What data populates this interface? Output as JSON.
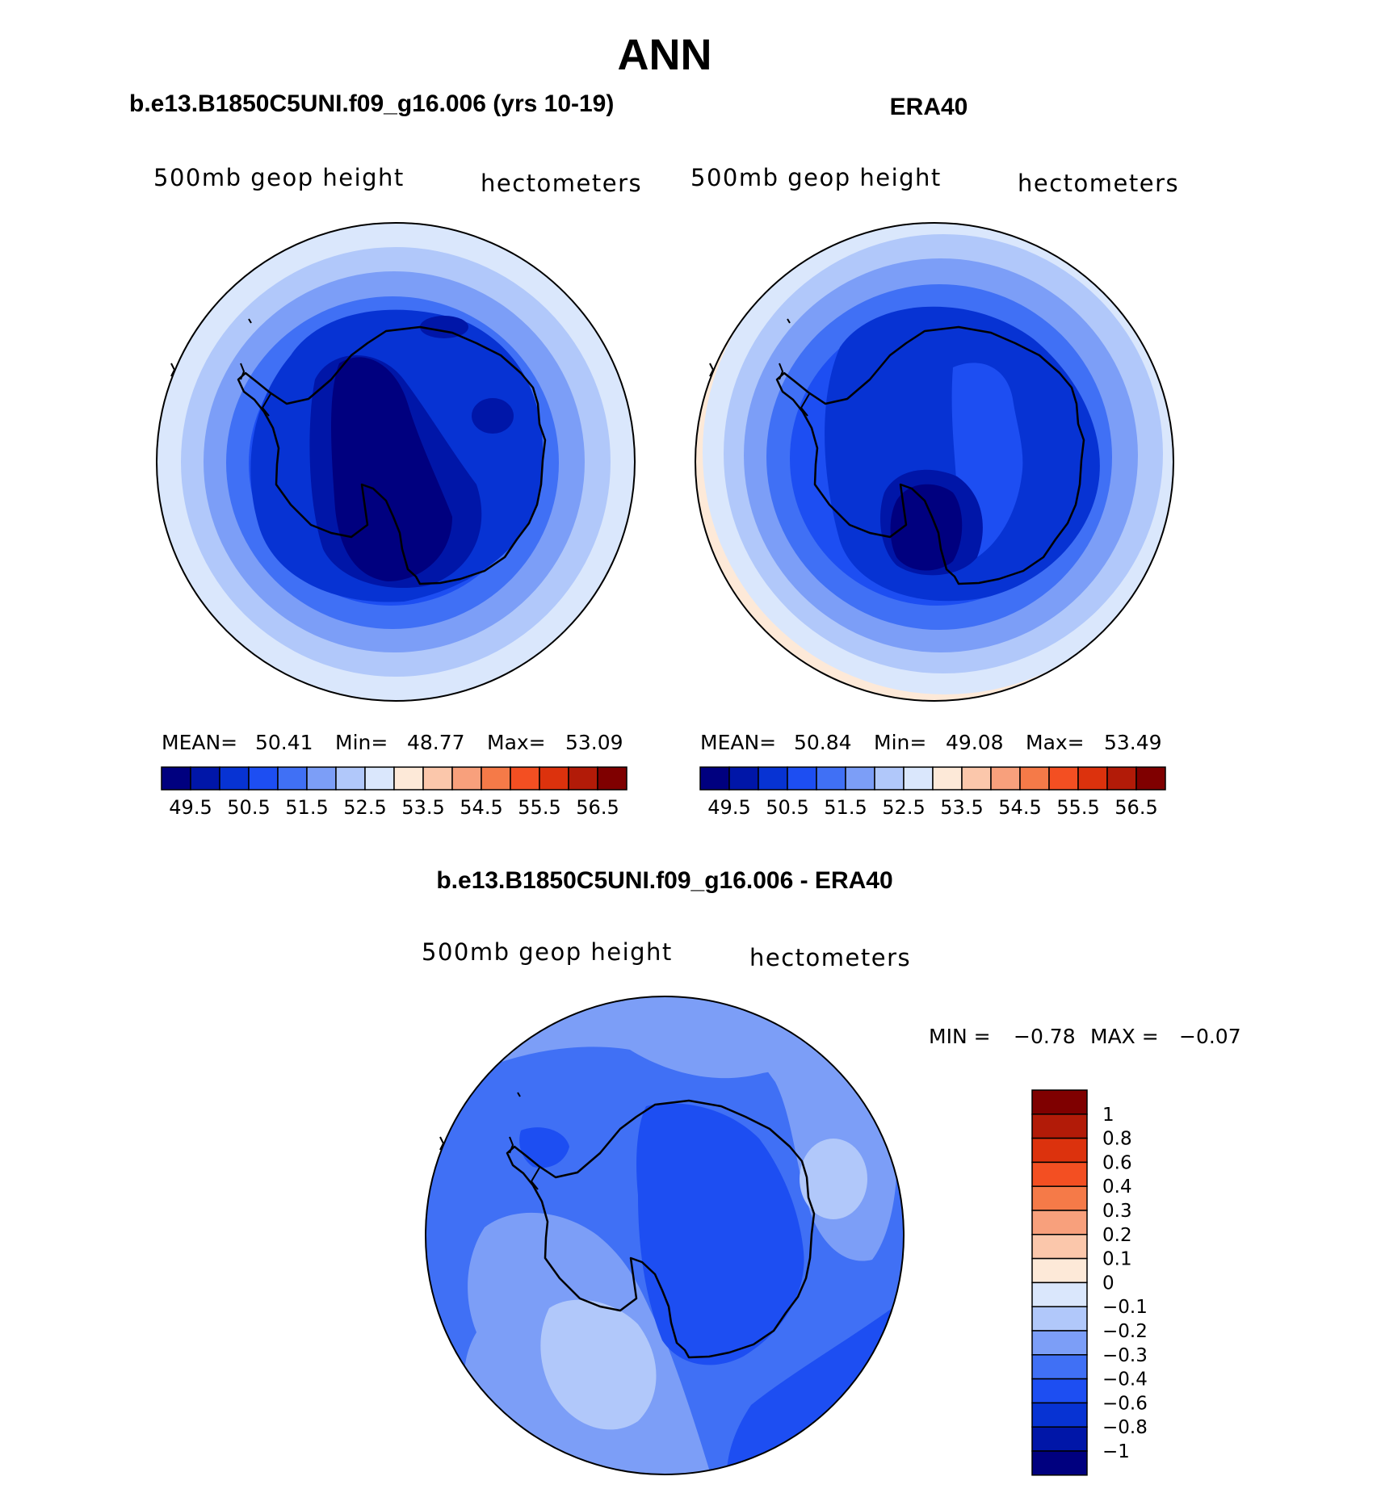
{
  "main_title": "ANN",
  "panels": {
    "model": {
      "title": "b.e13.B1850C5UNI.f09_g16.006 (yrs 10-19)",
      "variable": "500mb geop height",
      "units": "hectometers",
      "stats": {
        "mean_label": "MEAN=",
        "mean": "50.41",
        "min_label": "Min=",
        "min": "48.77",
        "max_label": "Max=",
        "max": "53.09"
      }
    },
    "obs": {
      "title": "ERA40",
      "variable": "500mb geop height",
      "units": "hectometers",
      "stats": {
        "mean_label": "MEAN=",
        "mean": "50.84",
        "min_label": "Min=",
        "min": "49.08",
        "max_label": "Max=",
        "max": "53.49"
      }
    },
    "diff": {
      "title": "b.e13.B1850C5UNI.f09_g16.006 - ERA40",
      "variable": "500mb geop height",
      "units": "hectometers",
      "stats": {
        "min_label": "MIN =",
        "min": "−0.78",
        "max_label": "MAX =",
        "max": "−0.07"
      }
    }
  },
  "horizontal_colorbar": {
    "colors": [
      "#00007f",
      "#0016a8",
      "#0733d3",
      "#1d4ef2",
      "#4070f5",
      "#7c9ef7",
      "#b1c8fa",
      "#dae7fc",
      "#fde9d8",
      "#fbc7ab",
      "#f8a07c",
      "#f57a48",
      "#f34f22",
      "#dc320d",
      "#b21b08",
      "#7f0000"
    ],
    "labels": [
      "49.5",
      "50.5",
      "51.5",
      "52.5",
      "53.5",
      "54.5",
      "55.5",
      "56.5"
    ]
  },
  "vertical_colorbar": {
    "colors_top_to_bottom": [
      "#7f0000",
      "#b21b08",
      "#dc320d",
      "#f34f22",
      "#f57a48",
      "#f8a07c",
      "#fbc7ab",
      "#fde9d8",
      "#dae7fc",
      "#b1c8fa",
      "#7c9ef7",
      "#4070f5",
      "#1d4ef2",
      "#0733d3",
      "#0016a8",
      "#00007f"
    ],
    "labels_top_to_bottom": [
      "1",
      "0.8",
      "0.6",
      "0.4",
      "0.3",
      "0.2",
      "0.1",
      "0",
      "−0.1",
      "−0.2",
      "−0.3",
      "−0.4",
      "−0.6",
      "−0.8",
      "−1"
    ]
  }
}
